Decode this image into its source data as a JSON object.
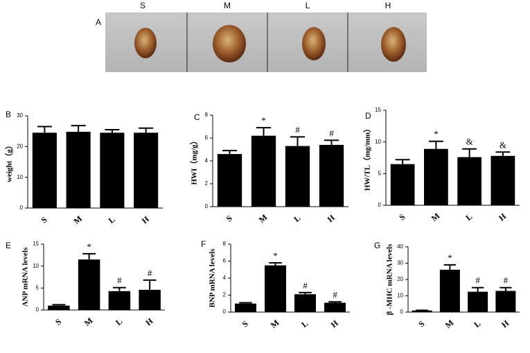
{
  "panel_a": {
    "label": "A",
    "columns": [
      "S",
      "M",
      "L",
      "H"
    ]
  },
  "chart_data": [
    {
      "type": "bar",
      "panel": "B",
      "ylabel": "weight（g）",
      "categories": [
        "S",
        "M",
        "L",
        "H"
      ],
      "values": [
        24.5,
        24.8,
        24.5,
        24.5
      ],
      "errors": [
        2,
        2,
        1,
        1.5
      ],
      "annotations": [
        null,
        null,
        null,
        null
      ],
      "color": "#000000",
      "ylim": [
        0,
        30
      ],
      "yticks": [
        0,
        10,
        20,
        30
      ]
    },
    {
      "type": "bar",
      "panel": "C",
      "ylabel": "HWI（mg/g）",
      "categories": [
        "S",
        "M",
        "L",
        "H"
      ],
      "values": [
        4.6,
        6.2,
        5.3,
        5.4
      ],
      "errors": [
        0.3,
        0.7,
        0.8,
        0.4
      ],
      "annotations": [
        null,
        "*",
        "#",
        "#"
      ],
      "color": "#000000",
      "ylim": [
        0,
        8
      ],
      "yticks": [
        0,
        2,
        4,
        6,
        8
      ]
    },
    {
      "type": "bar",
      "panel": "D",
      "ylabel": "HW/TL（mg/mm）",
      "categories": [
        "S",
        "M",
        "L",
        "H"
      ],
      "values": [
        6.5,
        8.9,
        7.6,
        7.8
      ],
      "errors": [
        0.7,
        1.2,
        1.3,
        0.6
      ],
      "annotations": [
        null,
        "*",
        "&",
        "&"
      ],
      "color": "#000000",
      "ylim": [
        0,
        15
      ],
      "yticks": [
        0,
        5,
        10,
        15
      ]
    },
    {
      "type": "bar",
      "panel": "E",
      "ylabel": "ANP mRNA levels",
      "categories": [
        "S",
        "M",
        "L",
        "H"
      ],
      "values": [
        1.0,
        11.5,
        4.3,
        4.6
      ],
      "errors": [
        0.2,
        1.3,
        0.8,
        2.2
      ],
      "annotations": [
        null,
        "*",
        "#",
        "#"
      ],
      "color": "#000000",
      "ylim": [
        0,
        15
      ],
      "yticks": [
        0,
        5,
        10,
        15
      ]
    },
    {
      "type": "bar",
      "panel": "F",
      "ylabel": "BNP mRNA levels",
      "categories": [
        "S",
        "M",
        "L",
        "H"
      ],
      "values": [
        1.0,
        5.5,
        2.1,
        1.1
      ],
      "errors": [
        0.1,
        0.3,
        0.2,
        0.1
      ],
      "annotations": [
        null,
        "*",
        "#",
        "#"
      ],
      "color": "#000000",
      "ylim": [
        0,
        8
      ],
      "yticks": [
        0,
        2,
        4,
        6,
        8
      ]
    },
    {
      "type": "bar",
      "panel": "G",
      "ylabel": "β -MHC mRNA levels",
      "categories": [
        "S",
        "M",
        "L",
        "H"
      ],
      "values": [
        1.0,
        26,
        12.5,
        13
      ],
      "errors": [
        0.1,
        3,
        2.5,
        2
      ],
      "annotations": [
        null,
        "*",
        "#",
        "#"
      ],
      "color": "#000000",
      "ylim": [
        0,
        40
      ],
      "yticks": [
        0,
        10,
        20,
        30,
        40
      ]
    }
  ]
}
